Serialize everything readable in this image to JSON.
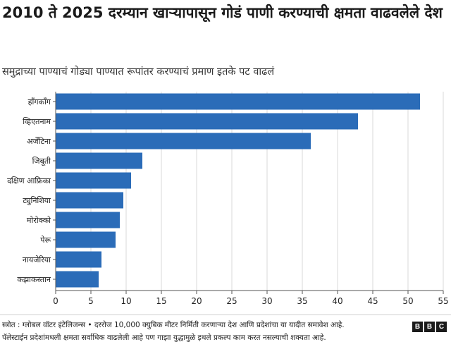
{
  "header": {
    "title": "2010 ते 2025 दरम्यान खाऱ्यापासून गोडं पाणी करण्याची क्षमता वाढवलेले देश",
    "subtitle": "समुद्राच्या पाण्याचं गोड्या पाण्यात रूपांतर करण्याचं प्रमाण इतके पट वाढलं"
  },
  "footer": {
    "line1": "स्त्रोत : ग्लोबल वॉटर इंटेलिजन्स • दररोज 10,000 क्युबिक मीटर निर्मिती करणाऱ्या देश आणि प्रदेशांचा या यादीत समावेश आहे.",
    "line2": "पॅलेस्टाईन प्रदेशांमधली क्षमता सर्वाधिक वाढलेली आहे पण गाझा युद्धामुळे इथले प्रकल्प काम करत नसल्याची शक्यता आहे.",
    "logo_letters": [
      "B",
      "B",
      "C"
    ]
  },
  "colors": {
    "bar": "#2b6cb8",
    "grid": "#d9d9d9",
    "axis": "#555555"
  },
  "chart_data": {
    "type": "bar",
    "orientation": "horizontal",
    "categories": [
      "हाँगकाँग",
      "व्हिएतनाम",
      "अर्जेंटिना",
      "जिबूती",
      "दक्षिण आफ्रिका",
      "ट्युनिशिया",
      "मोरोक्को",
      "पेरू",
      "नायजेरिया",
      "कझाकस्तान"
    ],
    "values": [
      51.7,
      42.9,
      36.2,
      12.3,
      10.7,
      9.6,
      9.1,
      8.5,
      6.5,
      6.1
    ],
    "xlim": [
      0,
      55
    ],
    "xticks": [
      0,
      5,
      10,
      15,
      20,
      25,
      30,
      35,
      40,
      45,
      50,
      55
    ],
    "grid": true,
    "title": "2010 ते 2025 दरम्यान खाऱ्यापासून गोडं पाणी करण्याची क्षमता वाढवलेले देश",
    "subtitle": "समुद्राच्या पाण्याचं गोड्या पाण्यात रूपांतर करण्याचं प्रमाण इतके पट वाढलं",
    "xlabel": "",
    "ylabel": ""
  }
}
